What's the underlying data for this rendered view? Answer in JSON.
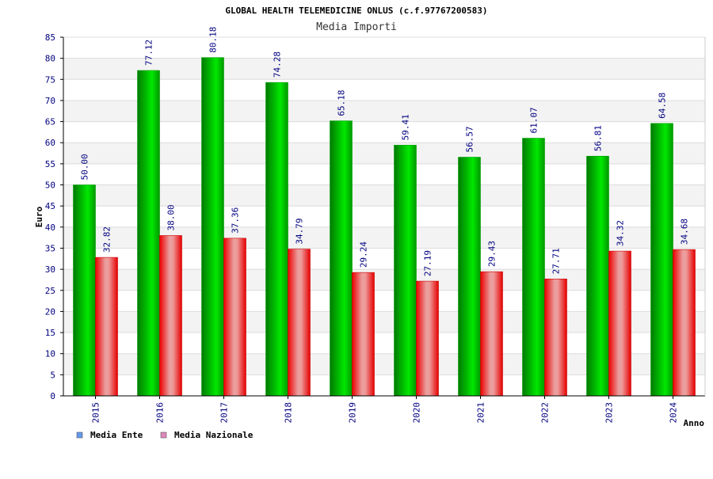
{
  "header": {
    "title": "GLOBAL HEALTH TELEMEDICINE ONLUS (c.f.97767200583)",
    "subtitle": "Media Importi"
  },
  "chart_data": {
    "type": "bar",
    "title": "GLOBAL HEALTH TELEMEDICINE ONLUS (c.f.97767200583)",
    "subtitle": "Media Importi",
    "xlabel": "Anno",
    "ylabel": "Euro",
    "categories": [
      "2015",
      "2016",
      "2017",
      "2018",
      "2019",
      "2020",
      "2021",
      "2022",
      "2023",
      "2024"
    ],
    "value_labels": {
      "Media Ente": [
        "50.00",
        "77.12",
        "80.18",
        "74.28",
        "65.18",
        "59.41",
        "56.57",
        "61.07",
        "56.81",
        "64.58"
      ],
      "Media Nazionale": [
        "32.82",
        "38.00",
        "37.36",
        "34.79",
        "29.24",
        "27.19",
        "29.43",
        "27.71",
        "34.32",
        "34.68"
      ]
    },
    "series": [
      {
        "name": "Media Ente",
        "values": [
          50.0,
          77.12,
          80.18,
          74.28,
          65.18,
          59.41,
          56.57,
          61.07,
          56.81,
          64.58
        ],
        "color": "#00c000"
      },
      {
        "name": "Media Nazionale",
        "values": [
          32.82,
          38.0,
          37.36,
          34.79,
          29.24,
          27.19,
          29.43,
          27.71,
          34.32,
          34.68
        ],
        "color": "#e00000"
      }
    ],
    "ylim": [
      0,
      85
    ],
    "ytick_step": 5,
    "yticks": [
      "0",
      "5",
      "10",
      "15",
      "20",
      "25",
      "30",
      "35",
      "40",
      "45",
      "50",
      "55",
      "60",
      "65",
      "70",
      "75",
      "80",
      "85"
    ],
    "grid": true,
    "legend": {
      "placement": "bottom-left",
      "items": [
        {
          "label": "Media Ente",
          "swatch_color": "#6699ee"
        },
        {
          "label": "Media Nazionale",
          "swatch_color": "#dd88bb"
        }
      ]
    }
  }
}
